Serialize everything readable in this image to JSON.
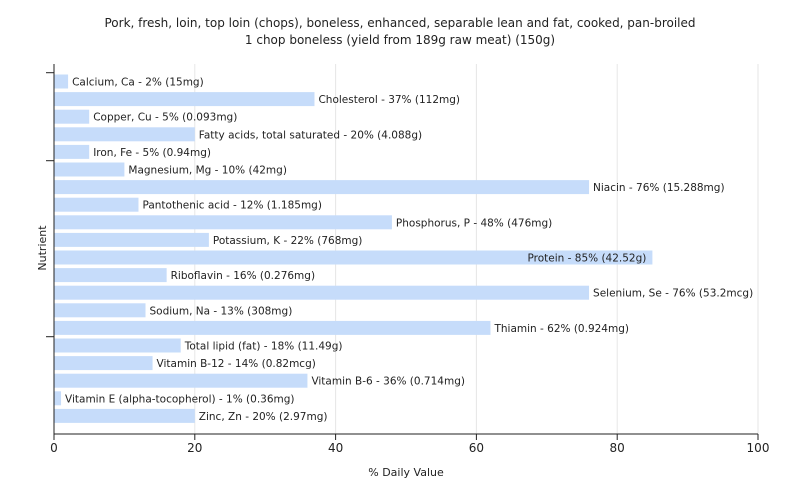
{
  "chart_data": {
    "type": "bar",
    "orientation": "horizontal",
    "title": "Pork, fresh, loin, top loin (chops), boneless, enhanced, separable lean and fat, cooked, pan-broiled",
    "subtitle": "1 chop boneless (yield from 189g raw meat) (150g)",
    "xlabel": "% Daily Value",
    "ylabel": "Nutrient",
    "xlim": [
      0,
      100
    ],
    "xticks": [
      0,
      20,
      40,
      60,
      80,
      100
    ],
    "grid": true,
    "bar_color": "#c6dcfa",
    "categories": [
      "Calcium, Ca",
      "Cholesterol",
      "Copper, Cu",
      "Fatty acids, total saturated",
      "Iron, Fe",
      "Magnesium, Mg",
      "Niacin",
      "Pantothenic acid",
      "Phosphorus, P",
      "Potassium, K",
      "Protein",
      "Riboflavin",
      "Selenium, Se",
      "Sodium, Na",
      "Thiamin",
      "Total lipid (fat)",
      "Vitamin B-12",
      "Vitamin B-6",
      "Vitamin E (alpha-tocopherol)",
      "Zinc, Zn"
    ],
    "values": [
      2,
      37,
      5,
      20,
      5,
      10,
      76,
      12,
      48,
      22,
      85,
      16,
      76,
      13,
      62,
      18,
      14,
      36,
      1,
      20
    ],
    "labels": [
      "Calcium, Ca - 2% (15mg)",
      "Cholesterol - 37% (112mg)",
      "Copper, Cu - 5% (0.093mg)",
      "Fatty acids, total saturated - 20% (4.088g)",
      "Iron, Fe - 5% (0.94mg)",
      "Magnesium, Mg - 10% (42mg)",
      "Niacin - 76% (15.288mg)",
      "Pantothenic acid - 12% (1.185mg)",
      "Phosphorus, P - 48% (476mg)",
      "Potassium, K - 22% (768mg)",
      "Protein - 85% (42.52g)",
      "Riboflavin - 16% (0.276mg)",
      "Selenium, Se - 76% (53.2mcg)",
      "Sodium, Na - 13% (308mg)",
      "Thiamin - 62% (0.924mg)",
      "Total lipid (fat) - 18% (11.49g)",
      "Vitamin B-12 - 14% (0.82mcg)",
      "Vitamin B-6 - 36% (0.714mg)",
      "Vitamin E (alpha-tocopherol) - 1% (0.36mg)",
      "Zinc, Zn - 20% (2.97mg)"
    ]
  }
}
